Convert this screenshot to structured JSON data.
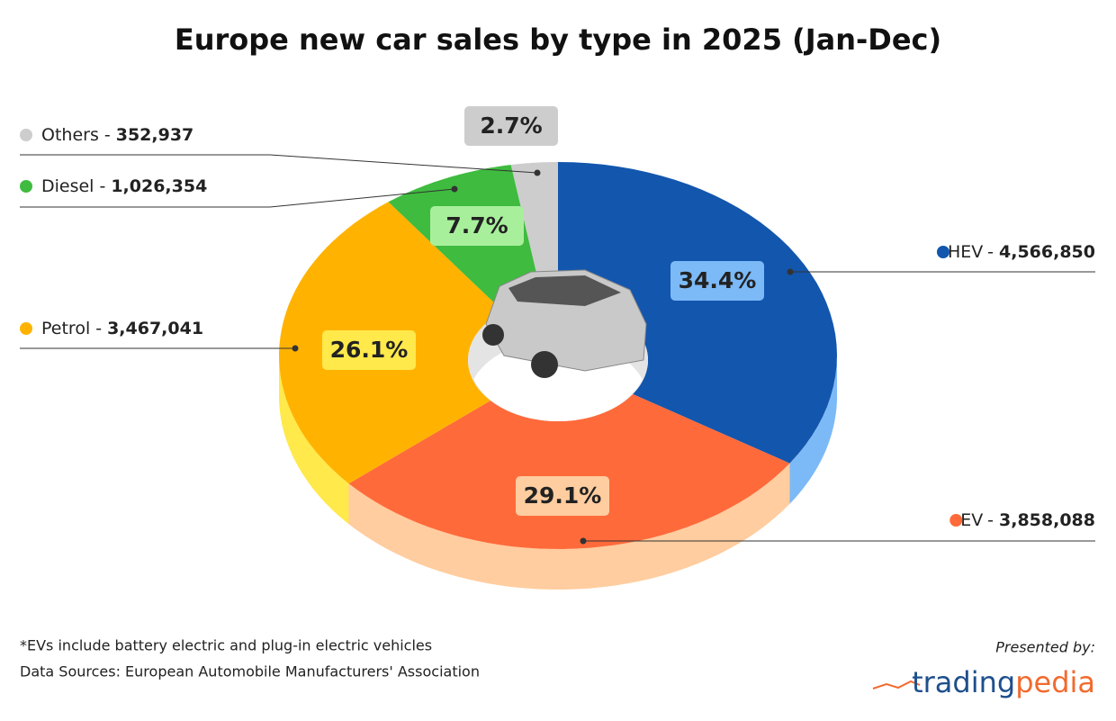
{
  "chart_data": {
    "type": "donut3d",
    "title": "Europe new car sales by type in 2025 (Jan-Dec)",
    "categories": [
      "HEV",
      "EV",
      "Petrol",
      "Diesel",
      "Others"
    ],
    "label_separator": "-",
    "values": [
      4566850,
      3858088,
      3467041,
      1026354,
      352937
    ],
    "value_labels": [
      "4,566,850",
      "3,858,088",
      "3,467,041",
      "1,026,354",
      "352,937"
    ],
    "shares": [
      34.4,
      29.1,
      26.1,
      7.7,
      2.7
    ],
    "share_labels": [
      "34.4%",
      "29.1%",
      "26.1%",
      "7.7%",
      "2.7%"
    ],
    "colors": [
      "#1356ad",
      "#ff6a3a",
      "#ffb300",
      "#3fbb3f",
      "#cdcdcd"
    ],
    "side_colors": [
      "#7cb9f7",
      "#ffcd9f",
      "#ffe94b",
      "#2f9a2f",
      "#b0b0b0"
    ],
    "label_colors": [
      "#7cb9f7",
      "#ffcd9f",
      "#ffe94b",
      "#a8ef9c",
      "#cdcdcd"
    ]
  },
  "footnote": "*EVs include battery electric and plug-in electric vehicles",
  "source": "Data Sources: European Automobile Manufacturers' Association",
  "presented_by": "Presented by:",
  "logo": {
    "part1": "trading",
    "part2": "pedia"
  }
}
